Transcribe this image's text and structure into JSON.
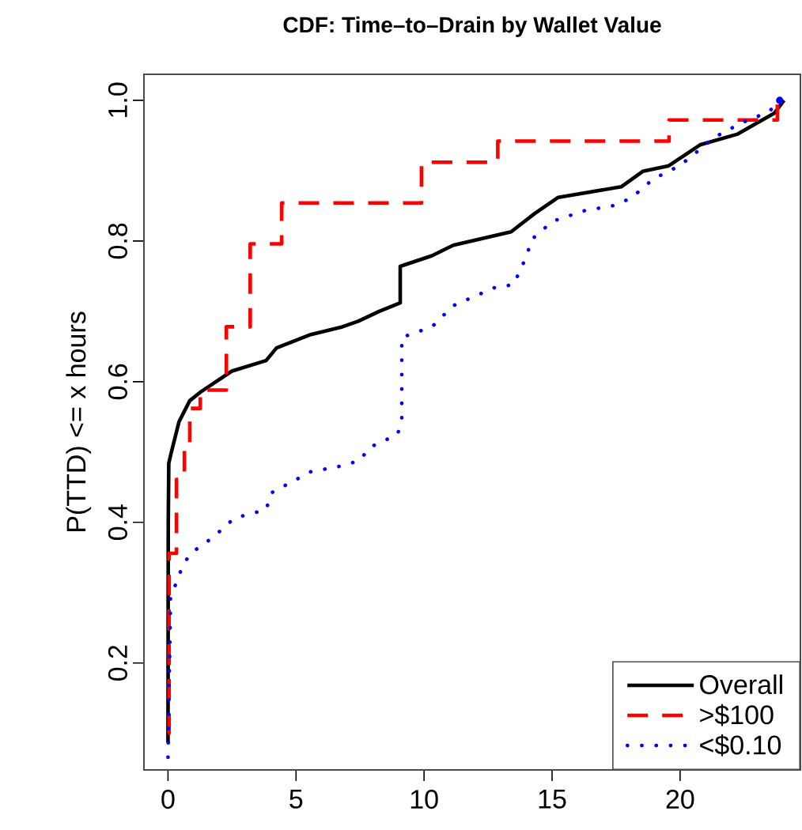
{
  "chart_data": {
    "type": "line",
    "title": "CDF: Time–to–Drain by Wallet Value",
    "ylabel": "P(TTD) <= x hours",
    "xlim": [
      -0.94,
      24.7
    ],
    "ylim": [
      0.048,
      1.037
    ],
    "xticks": [
      0,
      5,
      10,
      15,
      20
    ],
    "yticks": [
      0.2,
      0.4,
      0.6,
      0.8,
      {
        "value": 1,
        "label": "1.0"
      }
    ],
    "legend": "bottom right",
    "grid": false,
    "series": [
      {
        "name": "Overall",
        "type": "line",
        "color": "#000000",
        "line_style": "solid",
        "x": [
          0,
          0.01,
          0.03,
          0.12,
          0.43,
          0.85,
          1.26,
          2.49,
          3.83,
          4.24,
          5.58,
          6.81,
          7.43,
          8.25,
          9.07,
          9.07,
          10.31,
          11.14,
          13.4,
          14.32,
          15.24,
          17.7,
          18.54,
          19.56,
          20.8,
          22.25,
          23.69,
          24.06
        ],
        "values": [
          0.087,
          0.4,
          0.484,
          0.498,
          0.543,
          0.573,
          0.585,
          0.615,
          0.63,
          0.648,
          0.667,
          0.678,
          0.686,
          0.7,
          0.712,
          0.764,
          0.779,
          0.794,
          0.813,
          0.839,
          0.862,
          0.877,
          0.899,
          0.907,
          0.937,
          0.952,
          0.982,
          1.0
        ]
      },
      {
        "name": ">$100",
        "type": "step",
        "color": "#ff0000",
        "line_style": "dashed",
        "x": [
          0,
          0.04,
          0.33,
          0.64,
          0.85,
          1.26,
          2.28,
          3.21,
          4.44,
          9.9,
          12.88,
          19.57,
          23.8,
          24
        ],
        "values": [
          0.1,
          0.356,
          0.461,
          0.502,
          0.562,
          0.588,
          0.678,
          0.796,
          0.854,
          0.912,
          0.942,
          0.972,
          1.0,
          1.0
        ]
      },
      {
        "name": "<$0.10",
        "type": "line",
        "color": "#0000ff",
        "line_style": "dotted",
        "x": [
          0,
          0.1,
          0.33,
          0.54,
          0.85,
          1.77,
          2.59,
          3.83,
          4.04,
          5.58,
          6.91,
          7.53,
          7.84,
          8.97,
          9.13,
          9.13,
          10.31,
          11.14,
          12.78,
          13.5,
          14.01,
          14.2,
          15.02,
          16.26,
          17.5,
          18.12,
          18.95,
          19.98,
          20.6,
          21.32,
          22.35,
          23.48,
          23.89
        ],
        "values": [
          0.066,
          0.293,
          0.315,
          0.335,
          0.355,
          0.379,
          0.406,
          0.418,
          0.442,
          0.472,
          0.481,
          0.489,
          0.506,
          0.525,
          0.547,
          0.663,
          0.678,
          0.708,
          0.734,
          0.738,
          0.779,
          0.802,
          0.828,
          0.843,
          0.851,
          0.862,
          0.888,
          0.907,
          0.925,
          0.947,
          0.967,
          0.984,
          1.0
        ]
      }
    ]
  }
}
